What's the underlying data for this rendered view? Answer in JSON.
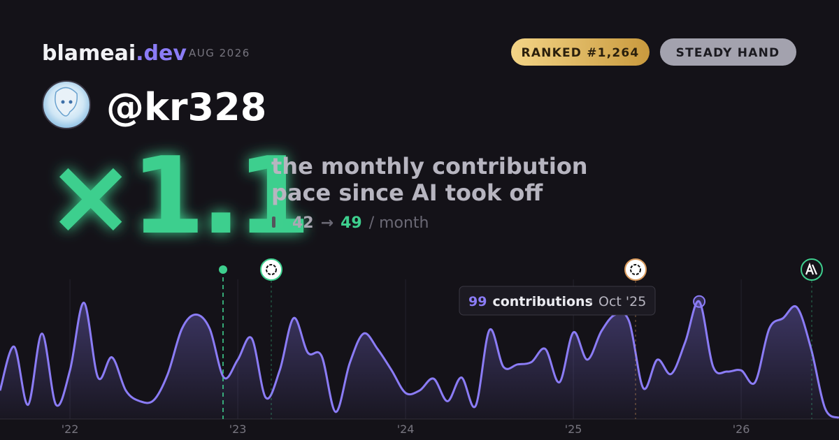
{
  "header": {
    "brand": "blameai",
    "brand_suffix": ".dev",
    "period": "AUG 2026",
    "badges": [
      "RANKED #1,264",
      "STEADY HAND"
    ],
    "handle": "@kr328"
  },
  "headline": {
    "multiplier": "×1.1",
    "description": [
      "the monthly contribution",
      "pace since AI took off"
    ],
    "before": "42",
    "arrow": "→",
    "after": "49",
    "unit": "/ month"
  },
  "tooltip": {
    "value": "99",
    "label": "contributions",
    "date": "Oct '25"
  },
  "chart_data": {
    "type": "area",
    "x": [
      2021.583,
      2021.667,
      2021.75,
      2021.833,
      2021.917,
      2022,
      2022.083,
      2022.167,
      2022.25,
      2022.333,
      2022.417,
      2022.5,
      2022.583,
      2022.667,
      2022.75,
      2022.833,
      2022.917,
      2023,
      2023.083,
      2023.167,
      2023.25,
      2023.333,
      2023.417,
      2023.5,
      2023.583,
      2023.667,
      2023.75,
      2023.833,
      2023.917,
      2024,
      2024.083,
      2024.167,
      2024.25,
      2024.333,
      2024.417,
      2024.5,
      2024.583,
      2024.667,
      2024.75,
      2024.833,
      2024.917,
      2025,
      2025.083,
      2025.167,
      2025.25,
      2025.333,
      2025.417,
      2025.5,
      2025.583,
      2025.667,
      2025.75,
      2025.833,
      2025.917,
      2026,
      2026.083,
      2026.167,
      2026.25,
      2026.333,
      2026.417,
      2026.5,
      2026.583
    ],
    "series": [
      {
        "color": "#8b7cf6",
        "values": [
          24,
          61,
          12,
          72,
          12,
          41,
          98,
          35,
          52,
          24,
          15,
          16,
          38,
          76,
          88,
          76,
          35,
          50,
          68,
          18,
          41,
          85,
          56,
          53,
          6,
          47,
          72,
          59,
          41,
          22,
          24,
          34,
          15,
          35,
          11,
          75,
          44,
          46,
          48,
          59,
          31,
          73,
          50,
          74,
          88,
          82,
          26,
          50,
          38,
          65,
          99,
          44,
          40,
          41,
          31,
          76,
          85,
          94,
          59,
          9,
          1
        ]
      }
    ],
    "xlim": [
      2021.583,
      2026.583
    ],
    "xticks": [
      {
        "value": 2022,
        "label": "'22"
      },
      {
        "value": 2023,
        "label": "'23"
      },
      {
        "value": 2024,
        "label": "'24"
      },
      {
        "value": 2025,
        "label": "'25"
      },
      {
        "value": 2026,
        "label": "'26"
      }
    ],
    "ylim": [
      0,
      100
    ],
    "grid": true,
    "highlight_index": 50
  }
}
